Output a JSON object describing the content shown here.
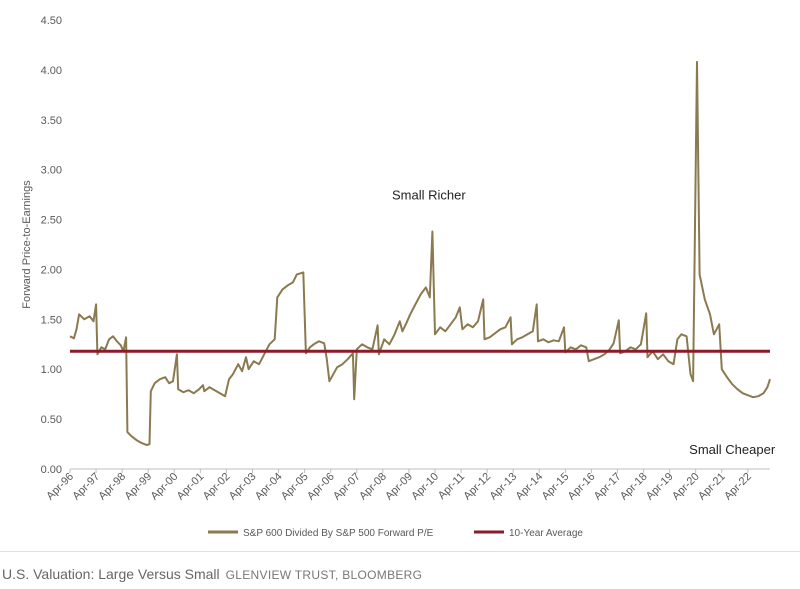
{
  "chart_data": {
    "type": "line",
    "title": "",
    "ylabel": "Forward Price-to-Earnings",
    "xlabel": "",
    "ylim": [
      0,
      4.5
    ],
    "yticks": [
      "0.00",
      "0.50",
      "1.00",
      "1.50",
      "2.00",
      "2.50",
      "3.00",
      "3.50",
      "4.00",
      "4.50"
    ],
    "xtick_labels": [
      "Apr-96",
      "Apr-97",
      "Apr-98",
      "Apr-99",
      "Apr-00",
      "Apr-01",
      "Apr-02",
      "Apr-03",
      "Apr-04",
      "Apr-05",
      "Apr-06",
      "Apr-07",
      "Apr-08",
      "Apr-09",
      "Apr-10",
      "Apr-11",
      "Apr-12",
      "Apr-13",
      "Apr-14",
      "Apr-15",
      "Apr-16",
      "Apr-17",
      "Apr-18",
      "Apr-19",
      "Apr-20",
      "Apr-21",
      "Apr-22"
    ],
    "x_range_years": [
      1996.25,
      2023.1
    ],
    "annotations": [
      {
        "text": "Small Richer",
        "x": 2008.6,
        "y": 2.75
      },
      {
        "text": "Small Cheaper",
        "x": 2020.0,
        "y": 0.2
      }
    ],
    "series": [
      {
        "name": "S&P 600 Divided By S&P 500 Forward P/E",
        "color": "#8b7a4f",
        "points": [
          [
            1996.25,
            1.33
          ],
          [
            1996.4,
            1.31
          ],
          [
            1996.5,
            1.4
          ],
          [
            1996.6,
            1.55
          ],
          [
            1996.8,
            1.5
          ],
          [
            1997.0,
            1.53
          ],
          [
            1997.15,
            1.48
          ],
          [
            1997.25,
            1.65
          ],
          [
            1997.3,
            1.15
          ],
          [
            1997.45,
            1.22
          ],
          [
            1997.6,
            1.2
          ],
          [
            1997.75,
            1.3
          ],
          [
            1997.9,
            1.33
          ],
          [
            1998.05,
            1.28
          ],
          [
            1998.2,
            1.24
          ],
          [
            1998.3,
            1.18
          ],
          [
            1998.4,
            1.32
          ],
          [
            1998.45,
            0.37
          ],
          [
            1998.6,
            0.33
          ],
          [
            1998.8,
            0.29
          ],
          [
            1999.0,
            0.26
          ],
          [
            1999.2,
            0.24
          ],
          [
            1999.3,
            0.25
          ],
          [
            1999.35,
            0.78
          ],
          [
            1999.5,
            0.86
          ],
          [
            1999.7,
            0.9
          ],
          [
            1999.9,
            0.92
          ],
          [
            2000.05,
            0.86
          ],
          [
            2000.2,
            0.88
          ],
          [
            2000.35,
            1.15
          ],
          [
            2000.4,
            0.8
          ],
          [
            2000.6,
            0.77
          ],
          [
            2000.8,
            0.79
          ],
          [
            2001.0,
            0.76
          ],
          [
            2001.2,
            0.8
          ],
          [
            2001.35,
            0.84
          ],
          [
            2001.4,
            0.78
          ],
          [
            2001.6,
            0.82
          ],
          [
            2001.8,
            0.79
          ],
          [
            2002.0,
            0.76
          ],
          [
            2002.2,
            0.73
          ],
          [
            2002.35,
            0.9
          ],
          [
            2002.5,
            0.95
          ],
          [
            2002.7,
            1.05
          ],
          [
            2002.85,
            0.98
          ],
          [
            2003.0,
            1.12
          ],
          [
            2003.1,
            1.0
          ],
          [
            2003.3,
            1.08
          ],
          [
            2003.5,
            1.05
          ],
          [
            2003.7,
            1.15
          ],
          [
            2003.9,
            1.25
          ],
          [
            2004.1,
            1.3
          ],
          [
            2004.2,
            1.72
          ],
          [
            2004.4,
            1.8
          ],
          [
            2004.6,
            1.84
          ],
          [
            2004.8,
            1.87
          ],
          [
            2004.95,
            1.95
          ],
          [
            2005.2,
            1.97
          ],
          [
            2005.3,
            1.16
          ],
          [
            2005.45,
            1.22
          ],
          [
            2005.6,
            1.25
          ],
          [
            2005.8,
            1.28
          ],
          [
            2006.0,
            1.26
          ],
          [
            2006.1,
            1.1
          ],
          [
            2006.2,
            0.88
          ],
          [
            2006.35,
            0.95
          ],
          [
            2006.5,
            1.02
          ],
          [
            2006.7,
            1.05
          ],
          [
            2006.9,
            1.1
          ],
          [
            2007.1,
            1.16
          ],
          [
            2007.15,
            0.7
          ],
          [
            2007.25,
            1.2
          ],
          [
            2007.45,
            1.25
          ],
          [
            2007.65,
            1.22
          ],
          [
            2007.85,
            1.2
          ],
          [
            2008.05,
            1.44
          ],
          [
            2008.1,
            1.15
          ],
          [
            2008.3,
            1.3
          ],
          [
            2008.5,
            1.25
          ],
          [
            2008.7,
            1.35
          ],
          [
            2008.9,
            1.48
          ],
          [
            2009.0,
            1.38
          ],
          [
            2009.15,
            1.46
          ],
          [
            2009.3,
            1.55
          ],
          [
            2009.5,
            1.65
          ],
          [
            2009.7,
            1.75
          ],
          [
            2009.9,
            1.82
          ],
          [
            2010.05,
            1.72
          ],
          [
            2010.15,
            2.38
          ],
          [
            2010.25,
            1.35
          ],
          [
            2010.45,
            1.42
          ],
          [
            2010.65,
            1.38
          ],
          [
            2010.85,
            1.45
          ],
          [
            2011.05,
            1.52
          ],
          [
            2011.2,
            1.62
          ],
          [
            2011.3,
            1.4
          ],
          [
            2011.5,
            1.45
          ],
          [
            2011.7,
            1.42
          ],
          [
            2011.9,
            1.48
          ],
          [
            2012.1,
            1.7
          ],
          [
            2012.15,
            1.3
          ],
          [
            2012.35,
            1.32
          ],
          [
            2012.55,
            1.36
          ],
          [
            2012.75,
            1.4
          ],
          [
            2012.95,
            1.42
          ],
          [
            2013.15,
            1.52
          ],
          [
            2013.2,
            1.25
          ],
          [
            2013.4,
            1.3
          ],
          [
            2013.6,
            1.32
          ],
          [
            2013.8,
            1.35
          ],
          [
            2014.0,
            1.38
          ],
          [
            2014.15,
            1.65
          ],
          [
            2014.2,
            1.28
          ],
          [
            2014.4,
            1.3
          ],
          [
            2014.6,
            1.27
          ],
          [
            2014.8,
            1.29
          ],
          [
            2015.0,
            1.28
          ],
          [
            2015.2,
            1.42
          ],
          [
            2015.25,
            1.17
          ],
          [
            2015.45,
            1.22
          ],
          [
            2015.65,
            1.2
          ],
          [
            2015.85,
            1.24
          ],
          [
            2016.05,
            1.22
          ],
          [
            2016.15,
            1.08
          ],
          [
            2016.35,
            1.1
          ],
          [
            2016.55,
            1.12
          ],
          [
            2016.75,
            1.15
          ],
          [
            2016.95,
            1.2
          ],
          [
            2017.1,
            1.26
          ],
          [
            2017.3,
            1.49
          ],
          [
            2017.35,
            1.16
          ],
          [
            2017.55,
            1.18
          ],
          [
            2017.75,
            1.22
          ],
          [
            2017.95,
            1.2
          ],
          [
            2018.15,
            1.25
          ],
          [
            2018.35,
            1.56
          ],
          [
            2018.4,
            1.12
          ],
          [
            2018.6,
            1.18
          ],
          [
            2018.8,
            1.1
          ],
          [
            2019.0,
            1.15
          ],
          [
            2019.2,
            1.08
          ],
          [
            2019.4,
            1.05
          ],
          [
            2019.55,
            1.3
          ],
          [
            2019.7,
            1.35
          ],
          [
            2019.9,
            1.33
          ],
          [
            2020.05,
            0.95
          ],
          [
            2020.15,
            0.88
          ],
          [
            2020.3,
            4.08
          ],
          [
            2020.4,
            1.95
          ],
          [
            2020.6,
            1.7
          ],
          [
            2020.8,
            1.55
          ],
          [
            2020.95,
            1.35
          ],
          [
            2021.15,
            1.45
          ],
          [
            2021.25,
            1.0
          ],
          [
            2021.45,
            0.92
          ],
          [
            2021.65,
            0.85
          ],
          [
            2021.85,
            0.8
          ],
          [
            2022.05,
            0.76
          ],
          [
            2022.25,
            0.74
          ],
          [
            2022.45,
            0.72
          ],
          [
            2022.65,
            0.73
          ],
          [
            2022.85,
            0.76
          ],
          [
            2023.0,
            0.82
          ],
          [
            2023.1,
            0.9
          ]
        ]
      },
      {
        "name": "10-Year Average",
        "color": "#8b1a2b",
        "points": [
          [
            1996.25,
            1.18
          ],
          [
            2023.1,
            1.18
          ]
        ]
      }
    ]
  },
  "caption": {
    "title": "U.S. Valuation: Large Versus Small",
    "source": "GLENVIEW TRUST, BLOOMBERG"
  }
}
